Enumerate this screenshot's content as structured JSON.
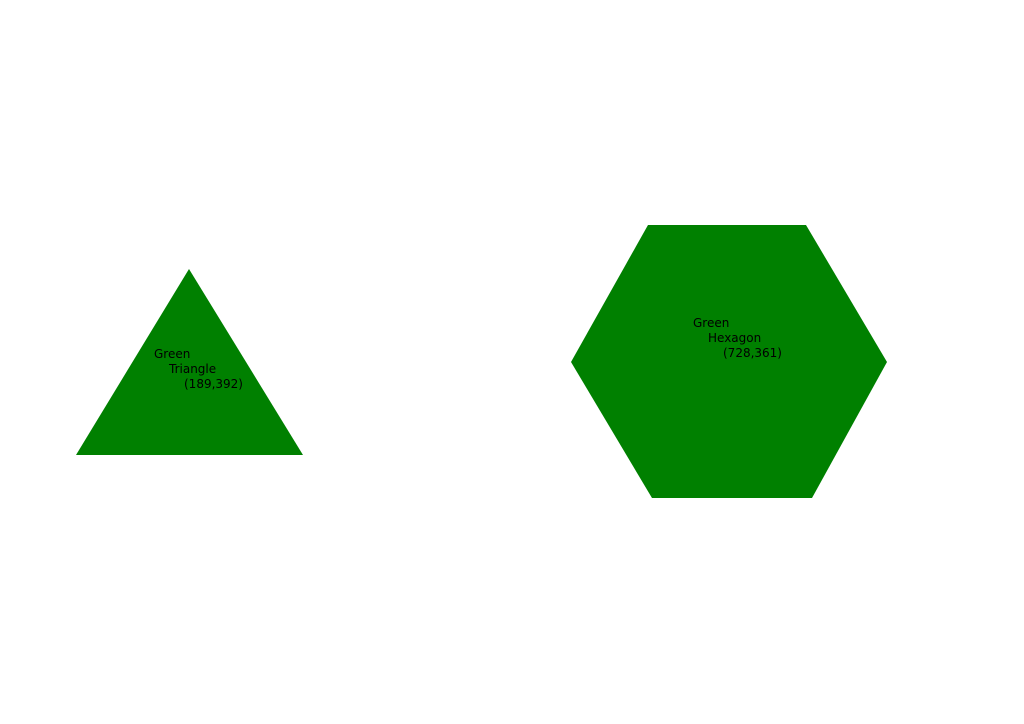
{
  "colors": {
    "background": "#ffffff",
    "shape_fill": "#008000",
    "label_text": "#000000"
  },
  "shapes": [
    {
      "color_name": "Green",
      "shape_name": "Triangle",
      "coordinates": "(189,392)"
    },
    {
      "color_name": "Green",
      "shape_name": "Hexagon",
      "coordinates": "(728,361)"
    }
  ]
}
